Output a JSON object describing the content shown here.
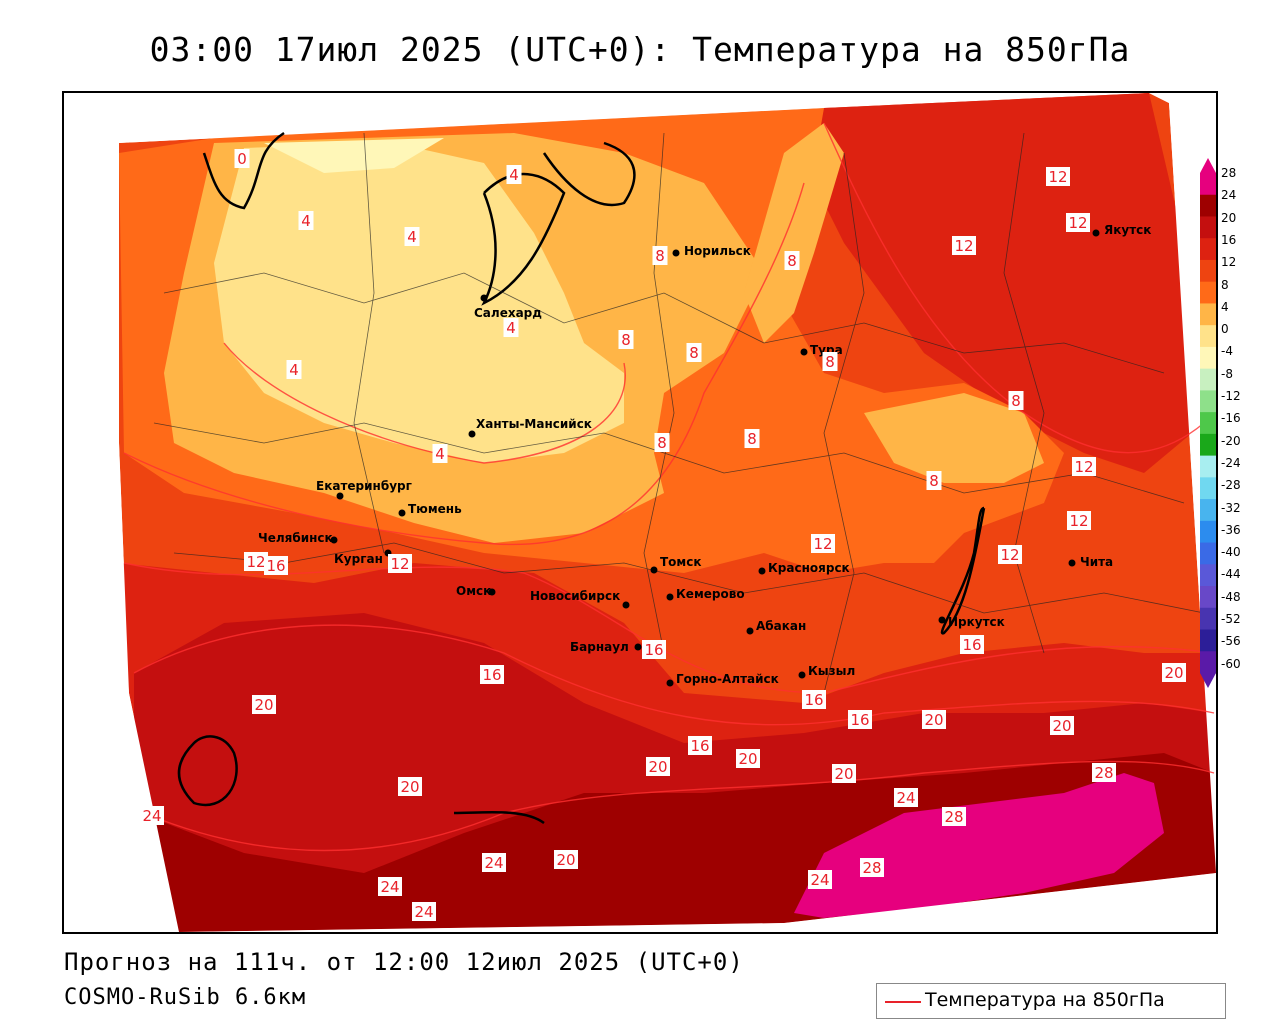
{
  "title": "03:00 17июл 2025 (UTC+0): Температура на 850гПа",
  "forecast": "Прогноз на 111ч. от 12:00 12июл 2025 (UTC+0)",
  "model": "COSMO-RuSib 6.6км",
  "legend_label": "Температура на 850гПа",
  "colorbar_ticks": [
    "28",
    "24",
    "20",
    "16",
    "12",
    "8",
    "4",
    "0",
    "-4",
    "-8",
    "-12",
    "-16",
    "-20",
    "-24",
    "-28",
    "-32",
    "-36",
    "-40",
    "-44",
    "-48",
    "-52",
    "-56",
    "-60"
  ],
  "colorbar_colors": [
    "#e6007e",
    "#9e0000",
    "#c40f0f",
    "#dd2211",
    "#ee4411",
    "#ff6a18",
    "#ffb547",
    "#ffe28a",
    "#fff7b8",
    "#c8f0c0",
    "#8ee08a",
    "#4ec84a",
    "#1aa81a",
    "#a8eef0",
    "#70d8f0",
    "#48b4ee",
    "#2c8cee",
    "#3a6ae6",
    "#5a58d8",
    "#6848c8",
    "#4834b0",
    "#2c1e98",
    "#5a1aa8"
  ],
  "cities": [
    {
      "name": "Норильск"
    },
    {
      "name": "Якутск"
    },
    {
      "name": "Салехард"
    },
    {
      "name": "Тура"
    },
    {
      "name": "Ханты-Мансийск"
    },
    {
      "name": "Екатеринбург"
    },
    {
      "name": "Тюмень"
    },
    {
      "name": "Челябинск"
    },
    {
      "name": "Курган"
    },
    {
      "name": "Омск"
    },
    {
      "name": "Новосибирск"
    },
    {
      "name": "Томск"
    },
    {
      "name": "Кемерово"
    },
    {
      "name": "Красноярск"
    },
    {
      "name": "Барнаул"
    },
    {
      "name": "Абакан"
    },
    {
      "name": "Горно-Алтайск"
    },
    {
      "name": "Кызыл"
    },
    {
      "name": "Иркутск"
    },
    {
      "name": "Чита"
    }
  ],
  "contour_labels": [
    "0",
    "4",
    "4",
    "4",
    "4",
    "4",
    "4",
    "8",
    "8",
    "8",
    "8",
    "8",
    "8",
    "8",
    "8",
    "8",
    "12",
    "12",
    "12",
    "12",
    "12",
    "12",
    "12",
    "12",
    "12",
    "16",
    "16",
    "16",
    "16",
    "16",
    "16",
    "16",
    "20",
    "20",
    "20",
    "20",
    "20",
    "20",
    "20",
    "20",
    "20",
    "24",
    "24",
    "24",
    "24",
    "24",
    "24",
    "28",
    "28",
    "28"
  ]
}
